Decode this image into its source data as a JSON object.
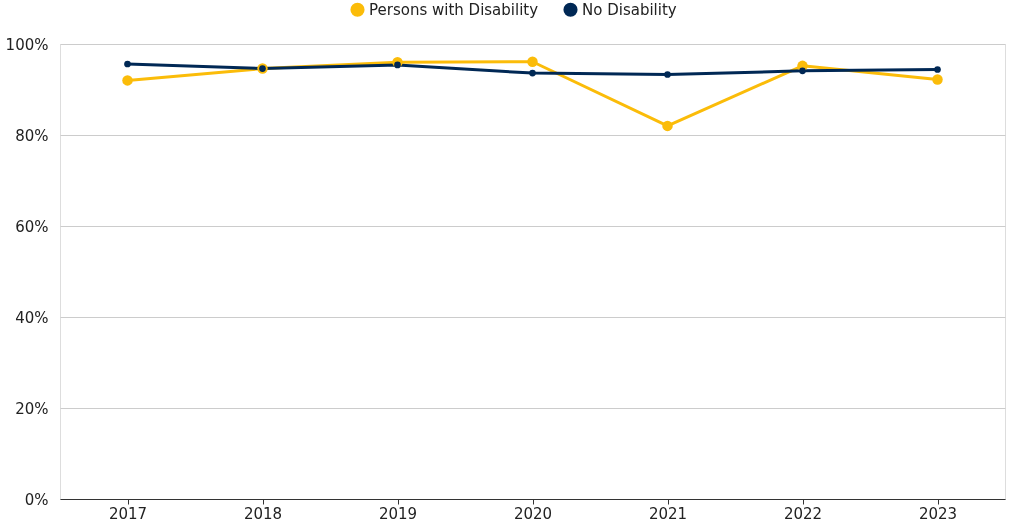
{
  "chart_data": {
    "type": "line",
    "categories": [
      "2017",
      "2018",
      "2019",
      "2020",
      "2021",
      "2022",
      "2023"
    ],
    "series": [
      {
        "name": "Persons with Disability",
        "color": "#fbbc09",
        "values": [
          92.0,
          94.6,
          96.0,
          96.1,
          82.0,
          95.2,
          92.2
        ]
      },
      {
        "name": "No Disability",
        "color": "#002855",
        "values": [
          95.6,
          94.6,
          95.4,
          93.6,
          93.3,
          94.1,
          94.4
        ]
      }
    ],
    "ylim": [
      0,
      100
    ],
    "yticks": [
      {
        "value": 0,
        "label": "0%"
      },
      {
        "value": 20,
        "label": "20%"
      },
      {
        "value": 40,
        "label": "40%"
      },
      {
        "value": 60,
        "label": "60%"
      },
      {
        "value": 80,
        "label": "80%"
      },
      {
        "value": 100,
        "label": "100%"
      }
    ],
    "grid": "y",
    "legend": "top",
    "marker": "circle",
    "line_style": "solid"
  }
}
